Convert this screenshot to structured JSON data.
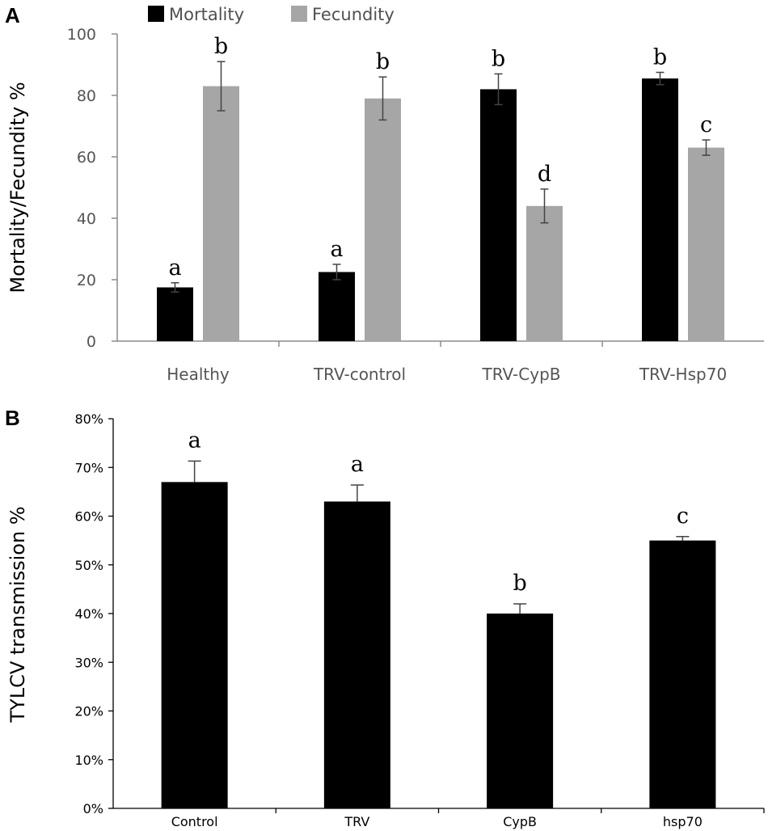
{
  "chart_data": [
    {
      "panel": "A",
      "type": "bar",
      "title": "",
      "xlabel": "",
      "ylabel": "Mortality/Fecundity %",
      "ylim": [
        0,
        100
      ],
      "yticks": [
        0,
        20,
        40,
        60,
        80,
        100
      ],
      "ytick_labels": [
        "0",
        "20",
        "40",
        "60",
        "80",
        "100"
      ],
      "categories": [
        "Healthy",
        "TRV-control",
        "TRV-CypB",
        "TRV-Hsp70"
      ],
      "legend_position": "top",
      "series": [
        {
          "name": "Mortality",
          "color": "#000000",
          "values": [
            17.5,
            22.5,
            82,
            85.5
          ],
          "errors": [
            1.5,
            2.5,
            5,
            2
          ],
          "letters": [
            "a",
            "a",
            "b",
            "b"
          ]
        },
        {
          "name": "Fecundity",
          "color": "#a6a6a6",
          "values": [
            83,
            79,
            44,
            63
          ],
          "errors": [
            8,
            7,
            5.5,
            2.5
          ],
          "letters": [
            "b",
            "b",
            "d",
            "c"
          ]
        }
      ]
    },
    {
      "panel": "B",
      "type": "bar",
      "title": "",
      "xlabel": "",
      "ylabel": "TYLCV transmission %",
      "ylim": [
        0,
        80
      ],
      "yticks": [
        0,
        10,
        20,
        30,
        40,
        50,
        60,
        70,
        80
      ],
      "ytick_labels": [
        "0%",
        "10%",
        "20%",
        "30%",
        "40%",
        "50%",
        "60%",
        "70%",
        "80%"
      ],
      "categories": [
        "Control",
        "TRV",
        "CypB",
        "hsp70"
      ],
      "series": [
        {
          "name": "Transmission",
          "color": "#000000",
          "values": [
            67,
            63,
            40,
            55
          ],
          "errors": [
            4.3,
            3.4,
            2,
            0.8
          ],
          "letters": [
            "a",
            "a",
            "b",
            "c"
          ]
        }
      ]
    }
  ]
}
